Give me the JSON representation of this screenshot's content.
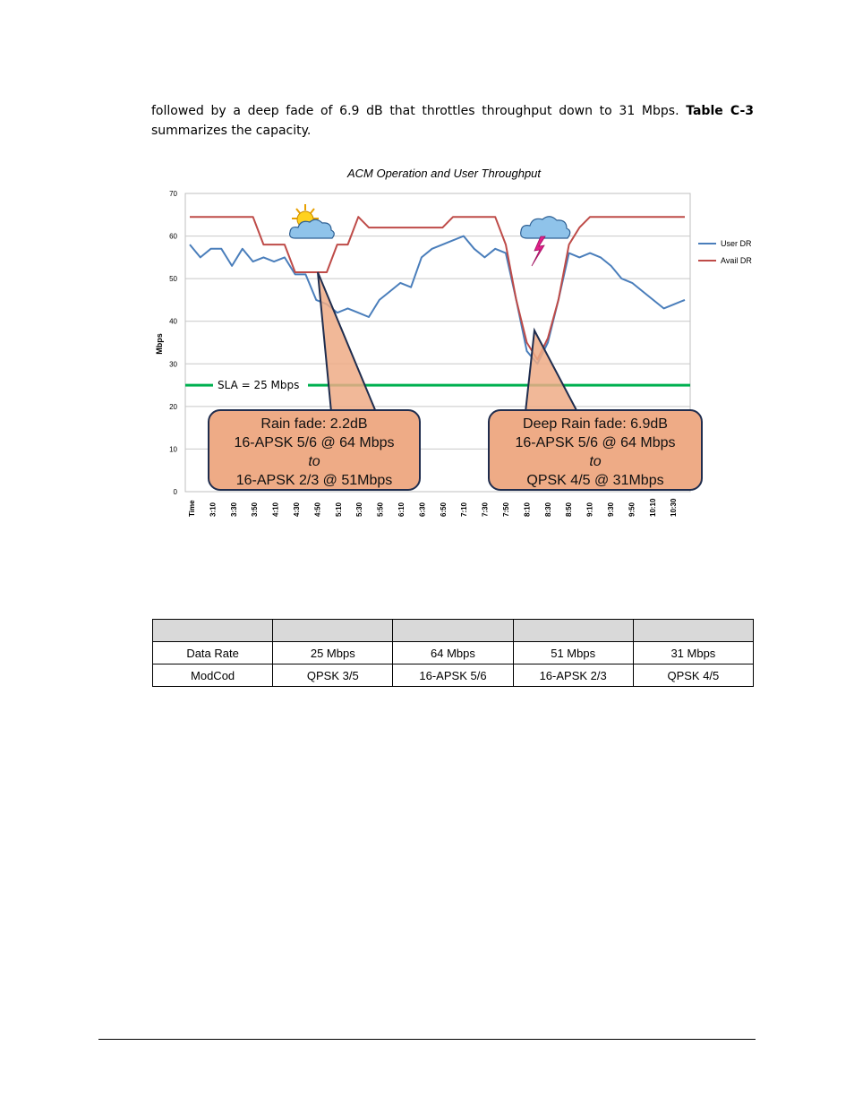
{
  "paragraph": {
    "text_before": "followed by a deep fade of 6.9 dB that throttles throughput down to 31 Mbps. ",
    "table_ref": "Table C-3",
    "text_after": " summarizes the capacity."
  },
  "chart_data": {
    "type": "line",
    "title": "ACM Operation and User Throughput",
    "xlabel": "",
    "ylabel": "Mbps",
    "ylim": [
      0,
      70
    ],
    "yticks": [
      0,
      10,
      20,
      30,
      40,
      50,
      60,
      70
    ],
    "grid": true,
    "legend_position": "right",
    "x_ticks": [
      "Time",
      "3:10",
      "3:30",
      "3:50",
      "4:10",
      "4:30",
      "4:50",
      "5:10",
      "5:30",
      "5:50",
      "6:10",
      "6:30",
      "6:50",
      "7:10",
      "7:30",
      "7:50",
      "8:10",
      "8:30",
      "8:50",
      "9:10",
      "9:30",
      "9:50",
      "10:10",
      "10:30"
    ],
    "series": [
      {
        "name": "User DR",
        "color": "#4a7ebb",
        "values": [
          58,
          55,
          57,
          57,
          53,
          57,
          54,
          55,
          54,
          55,
          51,
          51,
          45,
          44,
          42,
          43,
          42,
          41,
          45,
          47,
          49,
          48,
          55,
          57,
          58,
          59,
          60,
          57,
          55,
          57,
          56,
          45,
          33,
          30,
          35,
          45,
          56,
          55,
          56,
          55,
          53,
          50,
          49,
          47,
          45,
          43,
          44,
          45
        ]
      },
      {
        "name": "Avail DR",
        "color": "#be4b48",
        "values": [
          64.5,
          64.5,
          64.5,
          64.5,
          64.5,
          64.5,
          64.5,
          58,
          58,
          58,
          51.5,
          51.5,
          51.5,
          51.5,
          58,
          58,
          64.5,
          62,
          62,
          62,
          62,
          62,
          62,
          62,
          62,
          64.5,
          64.5,
          64.5,
          64.5,
          64.5,
          58,
          45,
          35,
          31,
          36,
          45,
          58,
          62,
          64.5,
          64.5,
          64.5,
          64.5,
          64.5,
          64.5,
          64.5,
          64.5,
          64.5,
          64.5
        ]
      }
    ],
    "sla_line": {
      "value": 25,
      "label": "SLA = 25 Mbps",
      "color": "#00b050"
    },
    "annotations": [
      {
        "lines": [
          "Rain fade: 2.2dB",
          "16-APSK 5/6 @ 64 Mbps",
          "to",
          "16-APSK 2/3 @ 51Mbps"
        ],
        "italic_line": 2,
        "fill": "#eeab86"
      },
      {
        "lines": [
          "Deep Rain fade: 6.9dB",
          "16-APSK 5/6 @ 64 Mbps",
          "to",
          "QPSK 4/5 @ 31Mbps"
        ],
        "italic_line": 2,
        "fill": "#eeab86"
      }
    ],
    "weather_icons": [
      "sun-cloud-icon",
      "storm-cloud-icon"
    ]
  },
  "capacity_table": {
    "headers": [
      "",
      "",
      "",
      "",
      ""
    ],
    "rows": [
      [
        "Data Rate",
        "25 Mbps",
        "64 Mbps",
        "51 Mbps",
        "31 Mbps"
      ],
      [
        "ModCod",
        "QPSK 3/5",
        "16-APSK 5/6",
        "16-APSK 2/3",
        "QPSK 4/5"
      ]
    ]
  }
}
